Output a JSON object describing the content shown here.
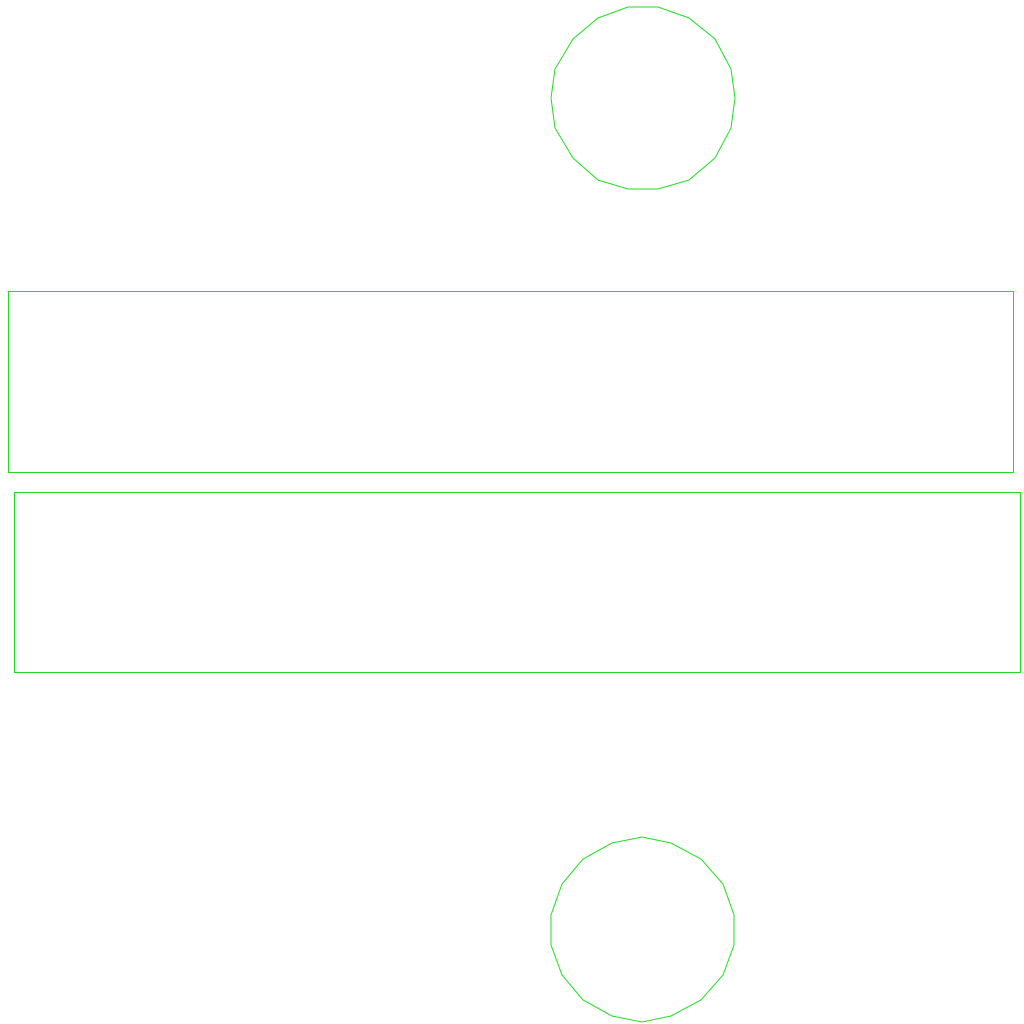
{
  "colors": {
    "background": "#ffffff",
    "stroke": "#22dd22"
  },
  "shapes": [
    {
      "kind": "circle",
      "name": "top-circle"
    },
    {
      "kind": "rectangle",
      "name": "upper-rectangle"
    },
    {
      "kind": "rectangle",
      "name": "lower-rectangle"
    },
    {
      "kind": "circle",
      "name": "bottom-circle"
    }
  ]
}
